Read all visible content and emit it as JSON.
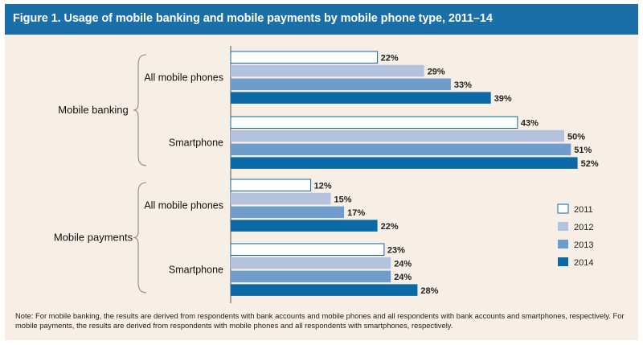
{
  "title": "Figure 1. Usage of mobile banking and mobile payments by mobile phone type, 2011–14",
  "note": "Note: For mobile banking, the results are derived from respondents with bank accounts and mobile phones and all respondents with bank accounts and smartphones, respectively. For mobile payments, the results are derived from respondents with mobile phones and all respondents with smartphones, respectively.",
  "chart_data": {
    "type": "bar",
    "orientation": "horizontal",
    "value_format": "percent",
    "legend_position": "right",
    "series": [
      {
        "name": "2011",
        "color": "#ffffff"
      },
      {
        "name": "2012",
        "color": "#b3c3dd"
      },
      {
        "name": "2013",
        "color": "#6e9dcc"
      },
      {
        "name": "2014",
        "color": "#0b6aa6"
      }
    ],
    "groups": [
      {
        "label": "Mobile banking",
        "categories": [
          {
            "label": "All mobile phones",
            "values": [
              22,
              29,
              33,
              39
            ]
          },
          {
            "label": "Smartphone",
            "values": [
              43,
              50,
              51,
              52
            ]
          }
        ]
      },
      {
        "label": "Mobile payments",
        "categories": [
          {
            "label": "All mobile phones",
            "values": [
              12,
              15,
              17,
              22
            ]
          },
          {
            "label": "Smartphone",
            "values": [
              23,
              24,
              24,
              28
            ]
          }
        ]
      }
    ]
  }
}
